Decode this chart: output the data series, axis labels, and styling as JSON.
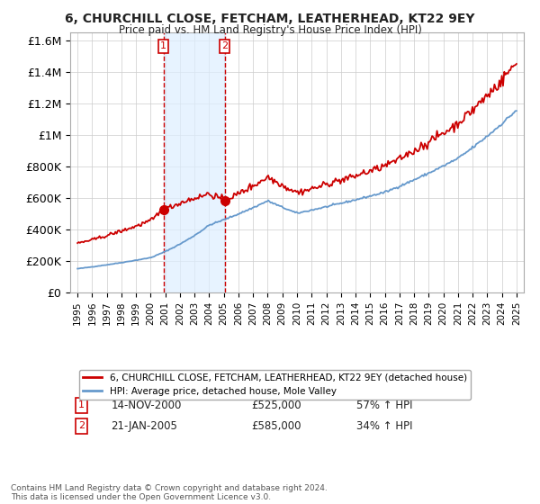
{
  "title": "6, CHURCHILL CLOSE, FETCHAM, LEATHERHEAD, KT22 9EY",
  "subtitle": "Price paid vs. HM Land Registry's House Price Index (HPI)",
  "ylabel_ticks": [
    "£0",
    "£200K",
    "£400K",
    "£600K",
    "£800K",
    "£1M",
    "£1.2M",
    "£1.4M",
    "£1.6M"
  ],
  "ytick_values": [
    0,
    200000,
    400000,
    600000,
    800000,
    1000000,
    1200000,
    1400000,
    1600000
  ],
  "ylim": [
    0,
    1650000
  ],
  "sale1_x": 2000.87,
  "sale1_y": 525000,
  "sale1_label": "1",
  "sale1_date": "14-NOV-2000",
  "sale1_price": "£525,000",
  "sale1_hpi": "57% ↑ HPI",
  "sale2_x": 2005.05,
  "sale2_y": 585000,
  "sale2_label": "2",
  "sale2_date": "21-JAN-2005",
  "sale2_price": "£585,000",
  "sale2_hpi": "34% ↑ HPI",
  "property_color": "#cc0000",
  "hpi_color": "#6699cc",
  "shade_color": "#ddeeff",
  "vline_color": "#cc0000",
  "background_color": "#ffffff",
  "grid_color": "#cccccc",
  "legend_property": "6, CHURCHILL CLOSE, FETCHAM, LEATHERHEAD, KT22 9EY (detached house)",
  "legend_hpi": "HPI: Average price, detached house, Mole Valley",
  "footnote": "Contains HM Land Registry data © Crown copyright and database right 2024.\nThis data is licensed under the Open Government Licence v3.0.",
  "xlim_start": 1994.5,
  "xlim_end": 2025.5
}
